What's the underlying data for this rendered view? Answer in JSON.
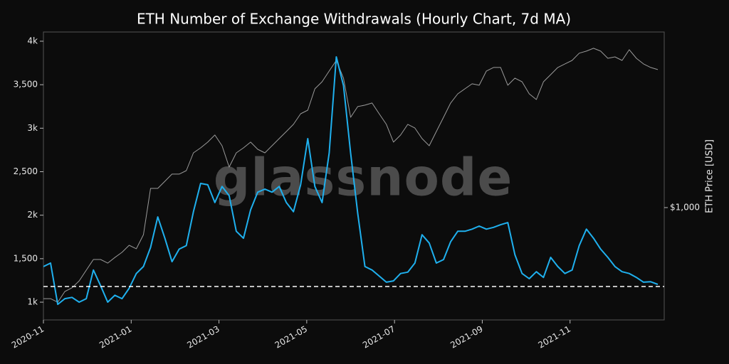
{
  "chart_data": {
    "type": "line",
    "title": "ETH Number of Exchange Withdrawals (Hourly Chart, 7d MA)",
    "y2_label": "ETH Price [USD]",
    "watermark": "glassnode",
    "xlim": [
      "2020-11",
      "2022-01"
    ],
    "xticks": [
      "2020-11",
      "2021-01",
      "2021-03",
      "2021-05",
      "2021-07",
      "2021-09",
      "2021-11"
    ],
    "ylim": [
      796,
      4106
    ],
    "yticks": [
      {
        "value": 1000,
        "label": "1k"
      },
      {
        "value": 1500,
        "label": "1,500"
      },
      {
        "value": 2000,
        "label": "2k"
      },
      {
        "value": 2500,
        "label": "2,500"
      },
      {
        "value": 3000,
        "label": "3k"
      },
      {
        "value": 3500,
        "label": "3,500"
      },
      {
        "value": 4000,
        "label": "4k"
      }
    ],
    "y2lim": [
      331,
      5630
    ],
    "y2scale": "log",
    "y2ticks": [
      {
        "value": 1000,
        "label": "$1,000"
      }
    ],
    "reference_line": 1180,
    "series": [
      {
        "color": "#9a9a9a",
        "axis": "y2",
        "values": [
          408,
          408,
          394,
          438,
          454,
          486,
          540,
          600,
          600,
          579,
          612,
          644,
          690,
          667,
          766,
          1208,
          1208,
          1295,
          1390,
          1390,
          1439,
          1714,
          1800,
          1905,
          2042,
          1838,
          1490,
          1714,
          1800,
          1905,
          1775,
          1714,
          1838,
          1972,
          2114,
          2268,
          2518,
          2608,
          3218,
          3450,
          3834,
          4256,
          3574,
          2432,
          2702,
          2740,
          2798,
          2518,
          2268,
          1905,
          2042,
          2268,
          2187,
          1972,
          1838,
          2114,
          2432,
          2798,
          3064,
          3218,
          3380,
          3334,
          3834,
          3970,
          3970,
          3334,
          3574,
          3450,
          3064,
          2897,
          3450,
          3700,
          3970,
          4111,
          4256,
          4570,
          4665,
          4798,
          4665,
          4345,
          4406,
          4256,
          4730,
          4345,
          4111,
          3970,
          3888
        ]
      },
      {
        "color": "#1fb0ee",
        "values": [
          1409,
          1450,
          975,
          1040,
          1055,
          1000,
          1040,
          1370,
          1190,
          1000,
          1080,
          1040,
          1160,
          1330,
          1410,
          1630,
          1980,
          1735,
          1465,
          1610,
          1650,
          2040,
          2365,
          2350,
          2145,
          2330,
          2225,
          1815,
          1735,
          2060,
          2265,
          2300,
          2265,
          2330,
          2145,
          2040,
          2350,
          2880,
          2330,
          2145,
          2715,
          3820,
          3490,
          2715,
          2020,
          1410,
          1370,
          1300,
          1230,
          1245,
          1330,
          1345,
          1450,
          1775,
          1680,
          1450,
          1490,
          1695,
          1815,
          1815,
          1840,
          1875,
          1840,
          1860,
          1890,
          1915,
          1545,
          1330,
          1270,
          1350,
          1285,
          1515,
          1410,
          1330,
          1370,
          1650,
          1840,
          1735,
          1610,
          1515,
          1410,
          1350,
          1330,
          1285,
          1230,
          1235,
          1205
        ]
      }
    ]
  }
}
